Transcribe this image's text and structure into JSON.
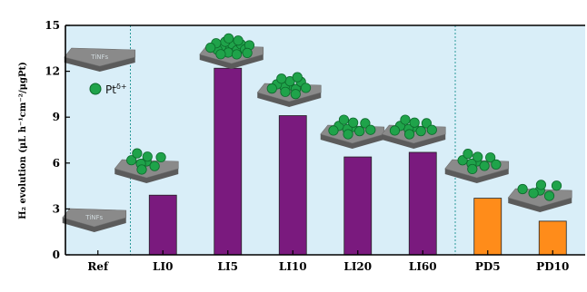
{
  "chart_data": {
    "type": "bar",
    "ylabel": "H₂ evolution (μL h⁻¹cm⁻²/μgPt)",
    "ylim": [
      0,
      15
    ],
    "yticks": [
      "0",
      "3",
      "6",
      "9",
      "12",
      "15"
    ],
    "categories": [
      "Ref",
      "LI0",
      "LI5",
      "LI10",
      "LI20",
      "LI60",
      "PD5",
      "PD10"
    ],
    "values": [
      0,
      3.9,
      12.2,
      9.1,
      6.4,
      6.7,
      3.7,
      2.2
    ],
    "groups": [
      {
        "range": [
          1,
          5
        ],
        "color": "#7a1a7e"
      },
      {
        "range": [
          6,
          7
        ],
        "color": "#ff8c1a"
      }
    ],
    "background": "#d9eef8",
    "legend": {
      "label": "Pt",
      "superscript": "δ+",
      "marker_color": "#1fa34a"
    },
    "slab_text": "TiNFs",
    "grid": false
  }
}
